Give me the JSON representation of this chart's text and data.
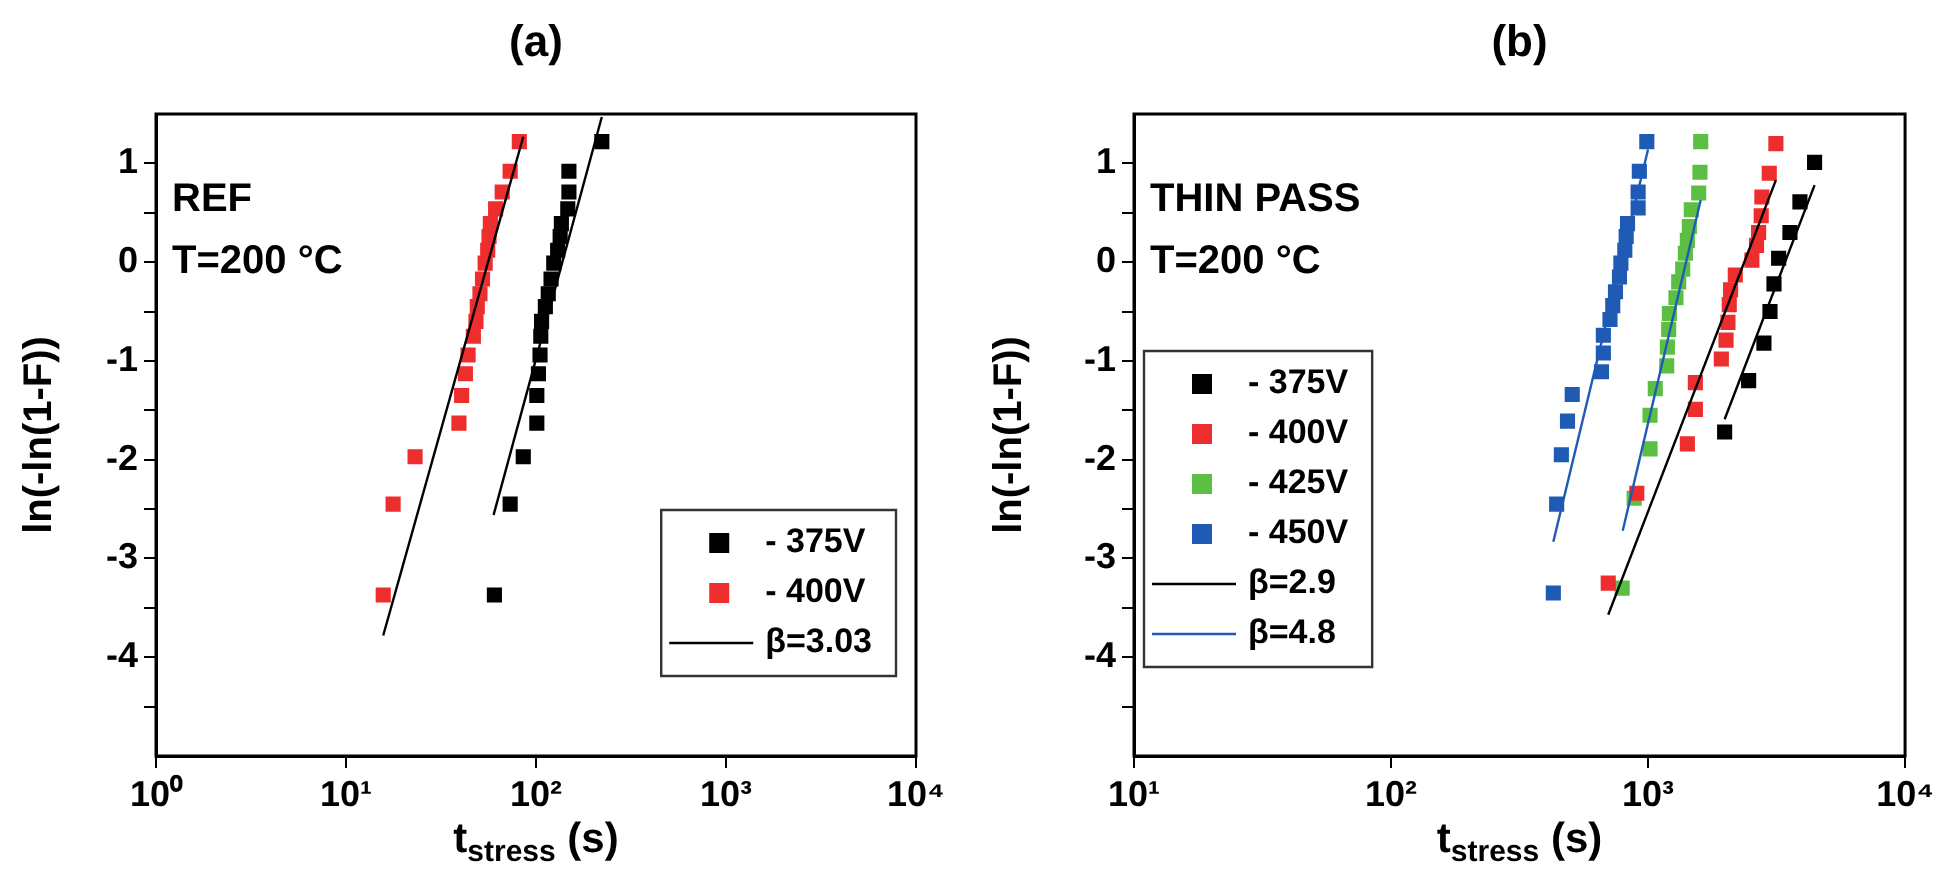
{
  "chart_data": [
    {
      "type": "scatter",
      "title": "(a)",
      "xlabel": "t$_{stress}$ (s)",
      "ylabel": "ln(-ln(1-F))",
      "annotations": [
        "REF",
        "T=200 °C"
      ],
      "log": "x",
      "xlim": [
        1,
        10000
      ],
      "xticks": [
        {
          "value": 1,
          "label": "10⁰"
        },
        {
          "value": 10,
          "label": "10¹"
        },
        {
          "value": 100,
          "label": "10²"
        },
        {
          "value": 1000,
          "label": "10³"
        },
        {
          "value": 10000,
          "label": "10⁴"
        }
      ],
      "ylim": [
        -5,
        1.5
      ],
      "yticks": [
        {
          "value": -4.5,
          "label": null
        },
        -4,
        {
          "value": -3.5,
          "label": null
        },
        -3,
        {
          "value": -2.5,
          "label": null
        },
        -2,
        {
          "value": -1.5,
          "label": null
        },
        -1,
        {
          "value": -0.5,
          "label": null
        },
        0,
        {
          "value": 0.5,
          "label": null
        },
        1
      ],
      "grid": false,
      "legend": "bottom right",
      "marker": "square",
      "series": [
        {
          "name": "- 375V",
          "color": "#000000",
          "x": [
            60.4,
            73.1,
            85.7,
            101,
            101,
            103,
            105,
            106,
            107,
            112,
            116,
            120,
            124,
            130,
            134,
            136,
            147,
            149,
            149,
            222
          ],
          "values": [
            -3.37,
            -2.45,
            -1.97,
            -1.63,
            -1.35,
            -1.13,
            -0.94,
            -0.75,
            -0.6,
            -0.45,
            -0.32,
            -0.17,
            -0.01,
            0.12,
            0.26,
            0.39,
            0.54,
            0.71,
            0.92,
            1.22
          ]
        },
        {
          "name": "- 400V",
          "color": "#ee2e2e",
          "x": [
            15.7,
            17.7,
            23.1,
            39.3,
            40.6,
            42.5,
            43.9,
            46.8,
            48.3,
            49.1,
            50.7,
            52.3,
            54,
            55.7,
            56.6,
            57.5,
            61.3,
            66.4,
            73.1,
            81.7
          ],
          "values": [
            -3.37,
            -2.45,
            -1.97,
            -1.63,
            -1.35,
            -1.13,
            -0.94,
            -0.75,
            -0.6,
            -0.45,
            -0.32,
            -0.17,
            -0.01,
            0.12,
            0.26,
            0.39,
            0.54,
            0.71,
            0.92,
            1.22
          ]
        },
        {
          "name": "β=3.03",
          "type": "line",
          "marker": "none",
          "color": "#000000",
          "x": [
            15.7,
            85.7
          ],
          "values": [
            -3.78,
            1.27
          ]
        },
        {
          "type": "line",
          "marker": "none",
          "color": "#000000",
          "x": [
            59.8,
            222
          ],
          "values": [
            -2.56,
            1.47
          ]
        }
      ]
    },
    {
      "type": "scatter",
      "title": "(b)",
      "xlabel": "t$_{stress}$ (s)",
      "ylabel": "ln(-ln(1-F))",
      "annotations": [
        "THIN PASS",
        "T=200 °C"
      ],
      "log": "x",
      "xlim": [
        10,
        10000
      ],
      "xticks": [
        {
          "value": 10,
          "label": "10¹"
        },
        {
          "value": 100,
          "label": "10²"
        },
        {
          "value": 1000,
          "label": "10³"
        },
        {
          "value": 10000,
          "label": "10⁴"
        }
      ],
      "ylim": [
        -5,
        1.5
      ],
      "yticks": [
        {
          "value": -4.5,
          "label": null
        },
        -4,
        {
          "value": -3.5,
          "label": null
        },
        -3,
        {
          "value": -2.5,
          "label": null
        },
        -2,
        {
          "value": -1.5,
          "label": null
        },
        -1,
        {
          "value": -0.5,
          "label": null
        },
        0,
        {
          "value": 0.5,
          "label": null
        },
        1
      ],
      "grid": false,
      "legend": "left",
      "marker": "square",
      "series": [
        {
          "name": "- 375V",
          "color": "#000000",
          "x": [
            1986,
            2462,
            2824,
            2981,
            3090,
            3222,
            3565,
            3899,
            4446
          ],
          "values": [
            -1.72,
            -1.2,
            -0.82,
            -0.5,
            -0.22,
            0.04,
            0.3,
            0.61,
            1.01
          ]
        },
        {
          "name": "- 400V",
          "color": "#ee2e2e",
          "x": [
            700,
            904,
            1422,
            1528,
            1528,
            1928,
            2011,
            2046,
            2070,
            2095,
            2185,
            2535,
            2643,
            2692,
            2756,
            2773,
            2962,
            3143
          ],
          "values": [
            -3.25,
            -2.34,
            -1.84,
            -1.49,
            -1.22,
            -0.98,
            -0.79,
            -0.61,
            -0.43,
            -0.28,
            -0.13,
            0.02,
            0.17,
            0.3,
            0.47,
            0.66,
            0.9,
            1.2
          ]
        },
        {
          "name": "- 425V",
          "color": "#5cbf44",
          "x": [
            793,
            883,
            1018,
            1018,
            1067,
            1182,
            1189,
            1203,
            1211,
            1284,
            1316,
            1364,
            1397,
            1422,
            1448,
            1473,
            1574,
            1592,
            1603
          ],
          "values": [
            -3.3,
            -2.39,
            -1.89,
            -1.55,
            -1.28,
            -1.05,
            -0.86,
            -0.68,
            -0.52,
            -0.36,
            -0.2,
            -0.07,
            0.09,
            0.22,
            0.36,
            0.53,
            0.7,
            0.91,
            1.22
          ]
        },
        {
          "name": "- 450V",
          "color": "#1f5bb5",
          "x": [
            428,
            441,
            460,
            486,
            507,
            659,
            670,
            670,
            711,
            729,
            747,
            774,
            784,
            812,
            822,
            832,
            915,
            915,
            925,
            989
          ],
          "values": [
            -3.35,
            -2.45,
            -1.95,
            -1.61,
            -1.34,
            -1.11,
            -0.92,
            -0.74,
            -0.58,
            -0.44,
            -0.3,
            -0.15,
            -0.01,
            0.12,
            0.26,
            0.39,
            0.55,
            0.71,
            0.92,
            1.22
          ]
        },
        {
          "name": "β=2.9",
          "type": "line",
          "marker": "none",
          "color": "#000000",
          "x": [
            700,
            3143
          ],
          "values": [
            -3.57,
            0.83
          ]
        },
        {
          "type": "line",
          "marker": "none",
          "color": "#000000",
          "x": [
            1986,
            4446
          ],
          "values": [
            -1.59,
            0.78
          ]
        },
        {
          "name": "β=4.8",
          "type": "line",
          "marker": "none",
          "color": "#1f5bb5",
          "x": [
            428,
            1000
          ],
          "values": [
            -2.83,
            1.14
          ]
        },
        {
          "type": "line",
          "marker": "none",
          "color": "#1f5bb5",
          "x": [
            797,
            1603
          ],
          "values": [
            -2.72,
            0.63
          ]
        }
      ]
    }
  ]
}
